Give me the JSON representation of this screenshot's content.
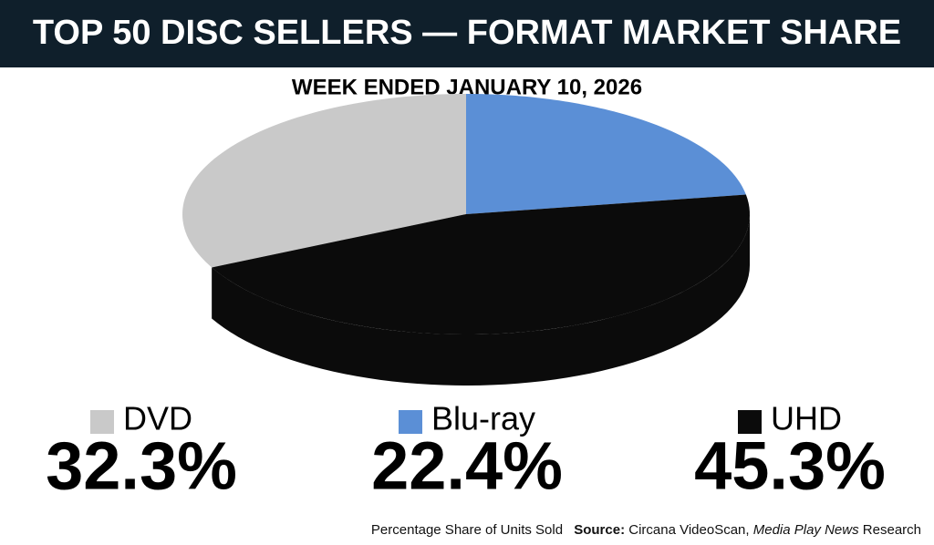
{
  "chart_data": {
    "type": "pie",
    "title": "TOP 50 DISC SELLERS — FORMAT MARKET SHARE",
    "subtitle": "WEEK ENDED JANUARY 10, 2026",
    "categories": [
      "DVD",
      "Blu-ray",
      "UHD"
    ],
    "values": [
      32.3,
      22.4,
      45.3
    ],
    "value_labels": [
      "32.3%",
      "22.4%",
      "45.3%"
    ],
    "colors": [
      "#c9c9c9",
      "#5b8fd6",
      "#0b0b0b"
    ],
    "footer": {
      "note": "Percentage Share of Units Sold",
      "source_label": "Source:",
      "source": "Circana VideoScan,",
      "publication": "Media Play News",
      "suffix": "Research"
    }
  }
}
